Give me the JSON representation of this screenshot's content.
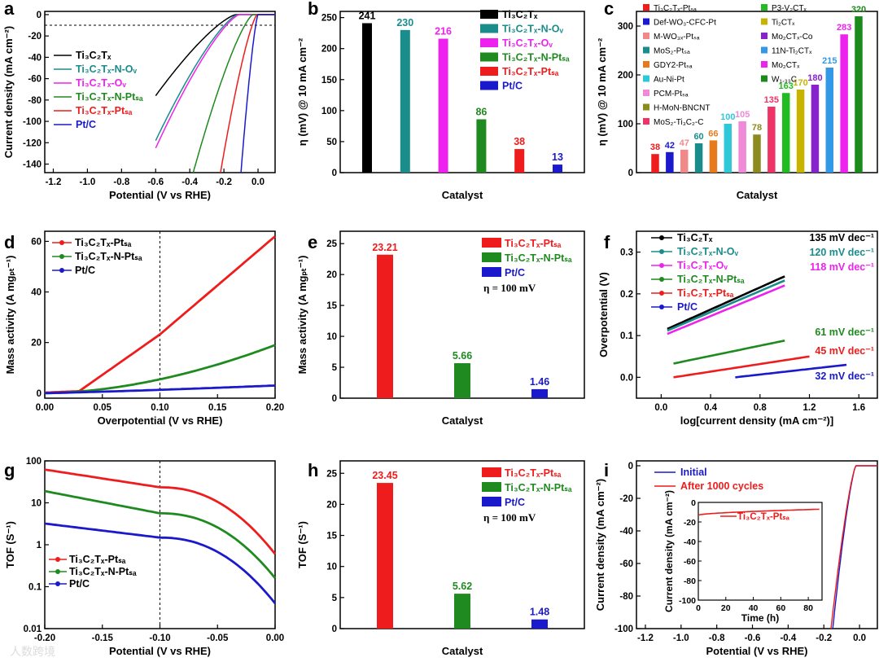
{
  "watermark": "人数跨境",
  "colors": {
    "black": "#000000",
    "teal": "#1a8c8c",
    "magenta": "#ee22ee",
    "green": "#1f8a1f",
    "red": "#ee1c1c",
    "blue": "#1a1acc",
    "olive": "#8b8b1e"
  },
  "chart_data": [
    {
      "id": "a",
      "panel": "a",
      "type": "line",
      "xlabel": "Potential (V vs RHE)",
      "ylabel": "Current density (mA cm⁻²)",
      "xlim": [
        -1.25,
        0.1
      ],
      "ylim": [
        -148,
        3
      ],
      "xticks": [
        -1.2,
        -1.0,
        -0.8,
        -0.6,
        -0.4,
        -0.2,
        0.0
      ],
      "yticks": [
        0,
        -20,
        -40,
        -60,
        -80,
        -100,
        -120,
        -140
      ],
      "refline_y": -10,
      "series": [
        {
          "name": "Ti₃C₂Tₓ",
          "color": "#000000",
          "onset": -0.13,
          "end_x": -0.6,
          "end_y": -76
        },
        {
          "name": "Ti₃C₂Tₓ-N-Oᵥ",
          "color": "#1a8c8c",
          "onset": -0.12,
          "end_x": -0.6,
          "end_y": -118
        },
        {
          "name": "Ti₃C₂Tₓ-Oᵥ",
          "color": "#ee22ee",
          "onset": -0.11,
          "end_x": -0.6,
          "end_y": -125
        },
        {
          "name": "Ti₃C₂Tₓ-N-Ptₛₐ",
          "color": "#1f8a1f",
          "onset": -0.03,
          "end_x": -0.38,
          "end_y": -148
        },
        {
          "name": "Ti₃C₂Tₓ-Ptₛₐ",
          "color": "#ee1c1c",
          "onset": -0.005,
          "end_x": -0.22,
          "end_y": -148
        },
        {
          "name": "Pt/C",
          "color": "#1a1acc",
          "onset": 0.0,
          "end_x": -0.1,
          "end_y": -148
        }
      ]
    },
    {
      "id": "b",
      "panel": "b",
      "type": "bar",
      "xlabel": "Catalyst",
      "ylabel": "η (mV) @ 10 mA cm⁻²",
      "ylim": [
        0,
        260
      ],
      "yticks": [
        0,
        50,
        100,
        150,
        200,
        250
      ],
      "categories": [
        "Ti₃C₂Tₓ",
        "Ti₃C₂Tₓ-N-Oᵥ",
        "Ti₃C₂Tₓ-Oᵥ",
        "Ti₃C₂Tₓ-N-Ptₛₐ",
        "Ti₃C₂Tₓ-Ptₛₐ",
        "Pt/C"
      ],
      "values": [
        241,
        230,
        216,
        86,
        38,
        13
      ],
      "colors": [
        "#000000",
        "#1a8c8c",
        "#ee22ee",
        "#1f8a1f",
        "#ee1c1c",
        "#1a1acc"
      ]
    },
    {
      "id": "c",
      "panel": "c",
      "type": "bar",
      "xlabel": "Catalyst",
      "ylabel": "η (mV) @ 10 mA cm⁻²",
      "ylim": [
        0,
        330
      ],
      "yticks": [
        0,
        100,
        200,
        300
      ],
      "categories": [
        "Ti₃C₂Tₓ-Ptₛₐ",
        "Def-WO₃-CFC-Pt",
        "M-WO₃ₓ-Ptₛₐ",
        "MoS₂-Ptₛₐ",
        "GDY2-Ptₛₐ",
        "Au-Ni-Pt",
        "PCM-Ptₛₐ",
        "H-MoN-BNCNT",
        "MoS₂-Ti₃C₂-C",
        "P3-V₂CTₓ",
        "Ti₂CTₓ",
        "Mo₂CTₓ-Co",
        "11N-Ti₂CTₓ",
        "Mo₂CTₓ",
        "W₁.₃₃C"
      ],
      "values": [
        38,
        42,
        47,
        60,
        66,
        100,
        105,
        78,
        135,
        163,
        170,
        180,
        215,
        283,
        320
      ],
      "colors": [
        "#ee1c1c",
        "#1a1acc",
        "#f08a8a",
        "#1a8c8c",
        "#e87a1e",
        "#2ec8d8",
        "#f08ad8",
        "#8b8b1e",
        "#ee3366",
        "#22bb22",
        "#c8b400",
        "#8822cc",
        "#3399e6",
        "#ee22ee",
        "#1a8a1a"
      ]
    },
    {
      "id": "d",
      "panel": "d",
      "type": "line",
      "xlabel": "Overpotential (V vs RHE)",
      "ylabel": "Mass activity (A mgₚₜ⁻¹)",
      "xlim": [
        0,
        0.2
      ],
      "ylim": [
        -2,
        64
      ],
      "xticks": [
        0.0,
        0.05,
        0.1,
        0.15,
        0.2
      ],
      "yticks": [
        0,
        20,
        40,
        60
      ],
      "refline_x": 0.1,
      "series": [
        {
          "name": "Ti₃C₂Tₓ-Ptₛₐ",
          "color": "#ee1c1c",
          "at_0_1": 23.21,
          "at_0_2": 62
        },
        {
          "name": "Ti₃C₂Tₓ-N-Ptₛₐ",
          "color": "#1f8a1f",
          "at_0_1": 5.66,
          "at_0_2": 19
        },
        {
          "name": "Pt/C",
          "color": "#1a1acc",
          "at_0_1": 1.46,
          "at_0_2": 3
        }
      ]
    },
    {
      "id": "e",
      "panel": "e",
      "type": "bar",
      "xlabel": "Catalyst",
      "ylabel": "Mass activity (A mgₚₜ⁻¹)",
      "ylim": [
        0,
        27
      ],
      "yticks": [
        0,
        5,
        10,
        15,
        20,
        25
      ],
      "note": "η = 100 mV",
      "categories": [
        "Ti₃C₂Tₓ-Ptₛₐ",
        "Ti₃C₂Tₓ-N-Ptₛₐ",
        "Pt/C"
      ],
      "values": [
        23.21,
        5.66,
        1.46
      ],
      "labels": [
        "23.21",
        "5.66",
        "1.46"
      ],
      "colors": [
        "#ee1c1c",
        "#1f8a1f",
        "#1a1acc"
      ]
    },
    {
      "id": "f",
      "panel": "f",
      "type": "line",
      "xlabel": "log[current density (mA cm⁻²)]",
      "ylabel": "Overpotential (V)",
      "xlim": [
        -0.2,
        1.75
      ],
      "ylim": [
        -0.05,
        0.35
      ],
      "xticks": [
        0.0,
        0.4,
        0.8,
        1.2,
        1.6
      ],
      "yticks": [
        0.0,
        0.1,
        0.2,
        0.3
      ],
      "series": [
        {
          "name": "Ti₃C₂Tₓ",
          "color": "#000000",
          "slope": "135 mV dec⁻¹",
          "x0": 0.05,
          "x1": 1.0,
          "y0": 0.116,
          "y1": 0.242
        },
        {
          "name": "Ti₃C₂Tₓ-N-Oᵥ",
          "color": "#1a8c8c",
          "slope": "120 mV dec⁻¹",
          "x0": 0.05,
          "x1": 1.0,
          "y0": 0.112,
          "y1": 0.232
        },
        {
          "name": "Ti₃C₂Tₓ-Oᵥ",
          "color": "#ee22ee",
          "slope": "118 mV dec⁻¹",
          "x0": 0.05,
          "x1": 1.0,
          "y0": 0.104,
          "y1": 0.22
        },
        {
          "name": "Ti₃C₂Tₓ-N-Ptₛₐ",
          "color": "#1f8a1f",
          "slope": "61 mV dec⁻¹",
          "x0": 0.1,
          "x1": 1.0,
          "y0": 0.033,
          "y1": 0.088
        },
        {
          "name": "Ti₃C₂Tₓ-Ptₛₐ",
          "color": "#ee1c1c",
          "slope": "45 mV dec⁻¹",
          "x0": 0.1,
          "x1": 1.2,
          "y0": 0.0,
          "y1": 0.05
        },
        {
          "name": "Pt/C",
          "color": "#1a1acc",
          "slope": "32 mV dec⁻¹",
          "x0": 0.6,
          "x1": 1.5,
          "y0": 0.0,
          "y1": 0.03
        }
      ]
    },
    {
      "id": "g",
      "panel": "g",
      "type": "line",
      "scale": "log",
      "xlabel": "Potential (V vs RHE)",
      "ylabel": "TOF (S⁻¹)",
      "xlim": [
        -0.2,
        0.0
      ],
      "ylim": [
        0.01,
        100
      ],
      "xticks": [
        -0.2,
        -0.15,
        -0.1,
        -0.05,
        0.0
      ],
      "yticks": [
        0.01,
        0.1,
        1,
        10,
        100
      ],
      "yticklabels": [
        "0.01",
        "0.1",
        "1",
        "10",
        "100"
      ],
      "refline_x": -0.1,
      "series": [
        {
          "name": "Ti₃C₂Tₓ-Ptₛₐ",
          "color": "#ee1c1c",
          "at_m0_2": 62,
          "at_m0_1": 23.45,
          "at_0": 0.6
        },
        {
          "name": "Ti₃C₂Tₓ-N-Ptₛₐ",
          "color": "#1f8a1f",
          "at_m0_2": 19,
          "at_m0_1": 5.62,
          "at_0": 0.16
        },
        {
          "name": "Pt/C",
          "color": "#1a1acc",
          "at_m0_2": 3.2,
          "at_m0_1": 1.48,
          "at_0": 0.04
        }
      ]
    },
    {
      "id": "h",
      "panel": "h",
      "type": "bar",
      "xlabel": "Catalyst",
      "ylabel": "TOF (S⁻¹)",
      "ylim": [
        0,
        27
      ],
      "yticks": [
        0,
        5,
        10,
        15,
        20,
        25
      ],
      "note": "η = 100 mV",
      "categories": [
        "Ti₃C₂Tₓ-Ptₛₐ",
        "Ti₃C₂Tₓ-N-Ptₛₐ",
        "Pt/C"
      ],
      "values": [
        23.45,
        5.62,
        1.48
      ],
      "labels": [
        "23.45",
        "5.62",
        "1.48"
      ],
      "colors": [
        "#ee1c1c",
        "#1f8a1f",
        "#1a1acc"
      ]
    },
    {
      "id": "i",
      "panel": "i",
      "type": "line",
      "xlabel": "Potential (V vs RHE)",
      "ylabel": "Current density (mA cm⁻²)",
      "xlim": [
        -1.25,
        0.1
      ],
      "ylim": [
        -100,
        3
      ],
      "xticks": [
        -1.2,
        -1.0,
        -0.8,
        -0.6,
        -0.4,
        -0.2,
        0.0
      ],
      "yticks": [
        0,
        -20,
        -40,
        -60,
        -80,
        -100
      ],
      "series": [
        {
          "name": "Initial",
          "color": "#1a1acc",
          "onset": -0.02,
          "end_x": -0.15,
          "end_y": -100
        },
        {
          "name": "After 1000 cycles",
          "color": "#ee1c1c",
          "onset": -0.02,
          "end_x": -0.16,
          "end_y": -100
        }
      ],
      "inset": {
        "label": "Ti₃C₂Tₓ-Ptₛₐ",
        "xlabel": "Time (h)",
        "ylabel": "Current density (mA cm⁻²)",
        "xlim": [
          0,
          90
        ],
        "ylim": [
          -100,
          0
        ],
        "xticks": [
          0,
          20,
          40,
          60,
          80
        ],
        "yticks": [
          0,
          -20,
          -40,
          -60,
          -80,
          -100
        ],
        "color": "#ee1c1c",
        "start_y": -13,
        "end_y": -7
      }
    }
  ]
}
